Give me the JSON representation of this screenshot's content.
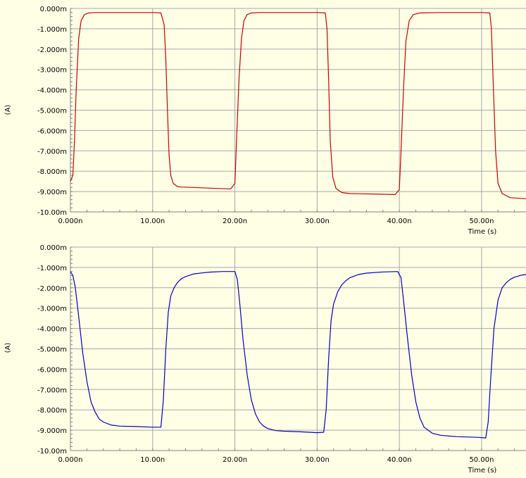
{
  "chart_data": [
    {
      "type": "line",
      "title": "",
      "xlabel": "Time (s)",
      "ylabel": "(A)",
      "xlim": [
        0,
        55.4
      ],
      "ylim": [
        -10.0,
        0.0
      ],
      "x_ticks": [
        0,
        10,
        20,
        30,
        40,
        50
      ],
      "x_tick_labels": [
        "0.000n",
        "10.00n",
        "20.00n",
        "30.00n",
        "40.00n",
        "50.00n"
      ],
      "y_ticks": [
        0,
        -1,
        -2,
        -3,
        -4,
        -5,
        -6,
        -7,
        -8,
        -9,
        -10
      ],
      "y_tick_labels": [
        "0.000m",
        "-1.000m",
        "-2.000m",
        "-3.000m",
        "-4.000m",
        "-5.000m",
        "-6.000m",
        "-7.000m",
        "-8.000m",
        "-9.000m",
        "-10.00m"
      ],
      "grid": true,
      "series": [
        {
          "color": "#cc0000",
          "x": [
            0.0,
            0.3,
            0.5,
            0.7,
            1.0,
            1.3,
            1.7,
            2.2,
            3.0,
            5.0,
            8.0,
            10.0,
            11.0,
            11.4,
            11.6,
            11.8,
            12.0,
            12.2,
            12.5,
            13.0,
            13.5,
            15.0,
            18.0,
            19.5,
            20.0,
            20.2,
            20.5,
            20.8,
            21.1,
            21.5,
            22.0,
            23.0,
            26.0,
            30.0,
            31.0,
            31.2,
            31.4,
            31.6,
            31.9,
            32.3,
            33.0,
            34.0,
            37.0,
            39.5,
            40.0,
            40.2,
            40.5,
            40.8,
            41.2,
            41.7,
            42.5,
            45.0,
            50.0,
            51.0,
            51.2,
            51.4,
            51.7,
            52.0,
            52.5,
            53.5,
            55.4
          ],
          "y": [
            -8.5,
            -8.2,
            -6.5,
            -4.0,
            -1.5,
            -0.6,
            -0.3,
            -0.22,
            -0.2,
            -0.2,
            -0.2,
            -0.2,
            -0.22,
            -0.8,
            -2.5,
            -5.0,
            -7.2,
            -8.2,
            -8.6,
            -8.75,
            -8.78,
            -8.8,
            -8.85,
            -8.87,
            -8.6,
            -6.5,
            -3.5,
            -1.5,
            -0.6,
            -0.3,
            -0.22,
            -0.2,
            -0.2,
            -0.2,
            -0.22,
            -1.0,
            -3.5,
            -6.5,
            -8.3,
            -8.85,
            -9.05,
            -9.1,
            -9.12,
            -9.15,
            -8.9,
            -7.0,
            -4.0,
            -1.6,
            -0.6,
            -0.3,
            -0.22,
            -0.2,
            -0.2,
            -0.22,
            -1.0,
            -3.5,
            -7.0,
            -8.6,
            -9.1,
            -9.3,
            -9.35
          ]
        }
      ]
    },
    {
      "type": "line",
      "title": "",
      "xlabel": "Time (s)",
      "ylabel": "(A)",
      "xlim": [
        0,
        55.4
      ],
      "ylim": [
        -10.0,
        0.0
      ],
      "x_ticks": [
        0,
        10,
        20,
        30,
        40,
        50
      ],
      "x_tick_labels": [
        "0.000n",
        "10.00n",
        "20.00n",
        "30.00n",
        "40.00n",
        "50.00n"
      ],
      "y_ticks": [
        0,
        -1,
        -2,
        -3,
        -4,
        -5,
        -6,
        -7,
        -8,
        -9,
        -10
      ],
      "y_tick_labels": [
        "0.000m",
        "-1.000m",
        "-2.000m",
        "-3.000m",
        "-4.000m",
        "-5.000m",
        "-6.000m",
        "-7.000m",
        "-8.000m",
        "-9.000m",
        "-10.00m"
      ],
      "grid": true,
      "series": [
        {
          "color": "#0000cc",
          "x": [
            0.0,
            0.3,
            0.6,
            1.0,
            1.5,
            2.0,
            2.5,
            3.0,
            3.5,
            4.0,
            5.0,
            6.0,
            8.0,
            10.0,
            11.0,
            11.3,
            11.6,
            11.9,
            12.2,
            12.6,
            13.0,
            13.5,
            14.0,
            15.0,
            16.0,
            17.0,
            18.5,
            20.0,
            20.3,
            20.6,
            21.0,
            21.5,
            22.0,
            22.5,
            23.0,
            23.5,
            24.0,
            25.0,
            26.0,
            28.0,
            30.0,
            30.8,
            31.1,
            31.4,
            31.7,
            32.0,
            32.5,
            33.0,
            33.5,
            34.0,
            35.0,
            36.0,
            38.0,
            39.8,
            40.2,
            40.5,
            41.0,
            41.5,
            42.0,
            42.5,
            43.0,
            44.0,
            45.0,
            47.0,
            49.5,
            50.5,
            50.8,
            51.1,
            51.5,
            52.0,
            52.5,
            53.0,
            53.5,
            54.0,
            54.8,
            55.4
          ],
          "y": [
            -1.2,
            -1.4,
            -2.0,
            -3.4,
            -5.2,
            -6.6,
            -7.6,
            -8.1,
            -8.45,
            -8.6,
            -8.75,
            -8.8,
            -8.82,
            -8.85,
            -8.85,
            -7.5,
            -5.0,
            -3.2,
            -2.4,
            -2.0,
            -1.75,
            -1.55,
            -1.45,
            -1.32,
            -1.27,
            -1.23,
            -1.2,
            -1.2,
            -1.6,
            -2.8,
            -4.6,
            -6.3,
            -7.5,
            -8.2,
            -8.6,
            -8.8,
            -8.92,
            -9.02,
            -9.05,
            -9.08,
            -9.12,
            -9.1,
            -8.0,
            -5.5,
            -3.6,
            -2.8,
            -2.2,
            -1.85,
            -1.65,
            -1.5,
            -1.35,
            -1.28,
            -1.22,
            -1.2,
            -1.5,
            -2.6,
            -4.5,
            -6.3,
            -7.6,
            -8.4,
            -8.85,
            -9.15,
            -9.25,
            -9.32,
            -9.35,
            -9.38,
            -8.6,
            -6.5,
            -4.0,
            -2.6,
            -2.0,
            -1.75,
            -1.58,
            -1.48,
            -1.38,
            -1.35
          ]
        }
      ]
    }
  ]
}
